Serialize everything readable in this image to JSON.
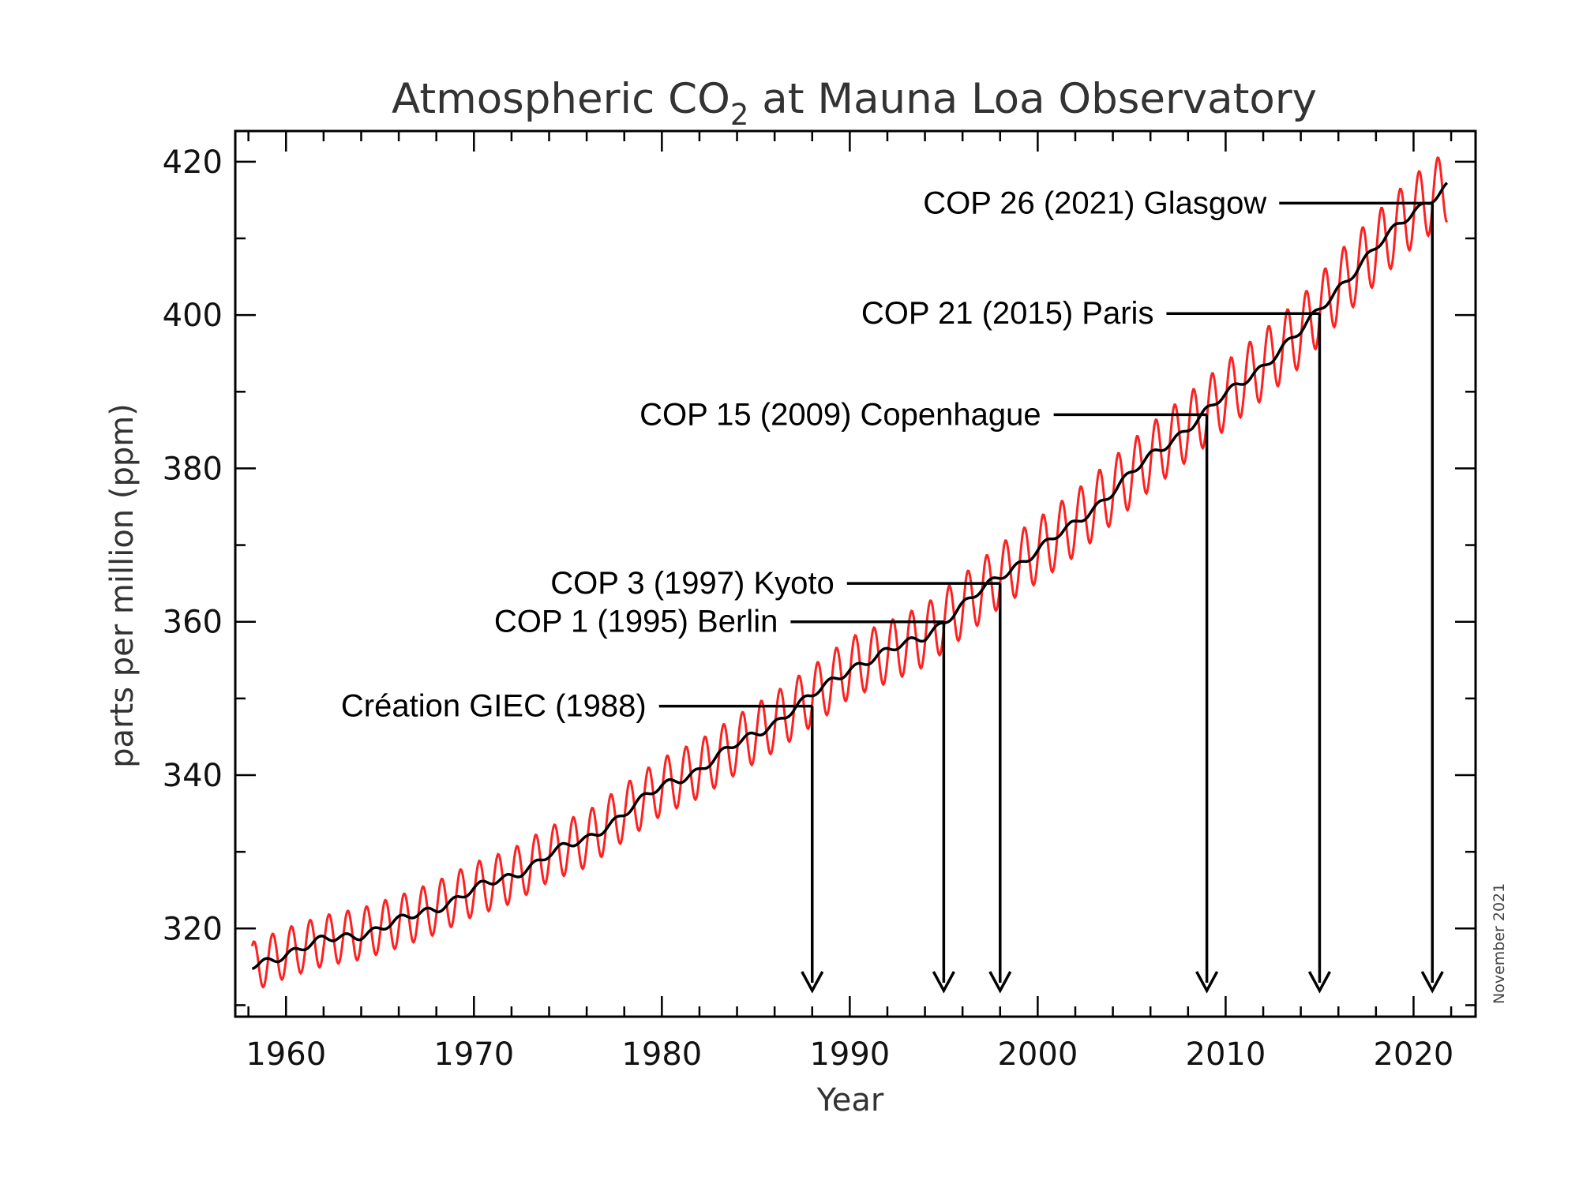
{
  "chart_data": {
    "type": "line",
    "title": "Atmospheric CO",
    "title_subscript": "2",
    "title_suffix": " at Mauna Loa Observatory",
    "xlabel": "Year",
    "ylabel": "parts per million (ppm)",
    "xlim": [
      1957.3,
      2023.3
    ],
    "ylim": [
      308.5,
      424.0
    ],
    "x_ticks": [
      1960,
      1970,
      1980,
      1990,
      2000,
      2010,
      2020
    ],
    "y_ticks": [
      320,
      340,
      360,
      380,
      400,
      420
    ],
    "credit": "November 2021",
    "colors": {
      "monthly": "#ff2020",
      "trend": "#000000",
      "axes": "#000000"
    },
    "series": [
      {
        "kind": "trend",
        "x": [
          1958.2,
          1960,
          1962,
          1964,
          1966,
          1968,
          1970,
          1972,
          1974,
          1976,
          1978,
          1980,
          1982,
          1984,
          1986,
          1988,
          1990,
          1992,
          1994,
          1996,
          1998,
          2000,
          2002,
          2004,
          2006,
          2008,
          2010,
          2012,
          2014,
          2016,
          2018,
          2020,
          2021.8
        ],
        "y": [
          315.0,
          316.8,
          318.4,
          319.3,
          320.9,
          322.7,
          325.1,
          326.8,
          329.7,
          331.6,
          335.1,
          338.5,
          340.8,
          344.0,
          346.9,
          350.3,
          354.0,
          356.0,
          358.2,
          362.0,
          366.0,
          369.3,
          372.8,
          377.1,
          381.5,
          385.4,
          389.5,
          393.5,
          397.8,
          403.6,
          408.7,
          413.6,
          416.8
        ],
        "seasonal_amplitude": 3.2
      }
    ],
    "annotations": [
      {
        "label": "Création GIEC (1988)",
        "year": 1988,
        "ppm": 349.0
      },
      {
        "label": "COP 1 (1995) Berlin",
        "year": 1995,
        "ppm": 360.0
      },
      {
        "label": "COP 3 (1997) Kyoto",
        "year": 1998,
        "ppm": 365.0
      },
      {
        "label": "COP 15 (2009) Copenhague",
        "year": 2009,
        "ppm": 387.0
      },
      {
        "label": "COP 21 (2015) Paris",
        "year": 2015,
        "ppm": 400.2
      },
      {
        "label": "COP 26 (2021) Glasgow",
        "year": 2021,
        "ppm": 414.6
      }
    ],
    "grid": false
  }
}
